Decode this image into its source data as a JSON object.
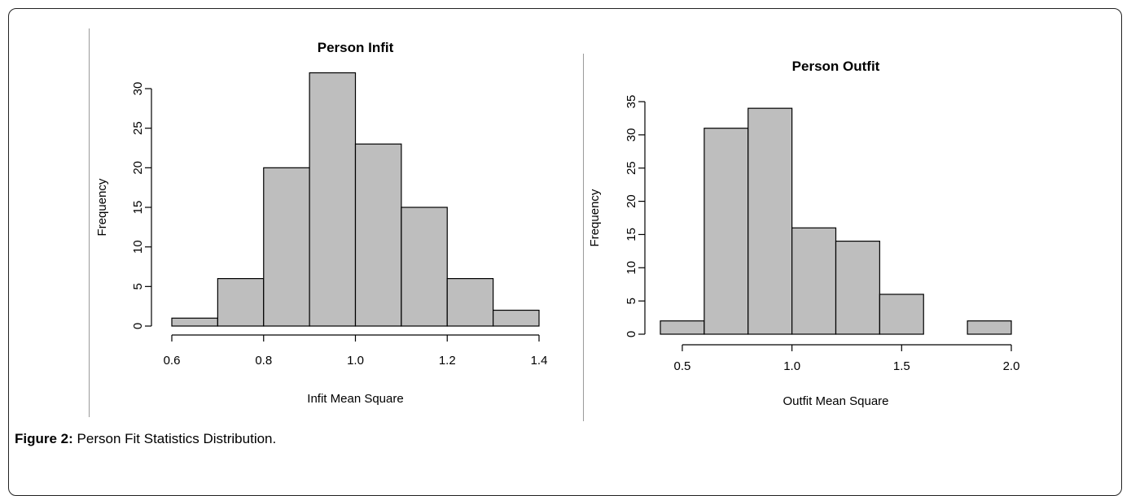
{
  "caption": {
    "label": "Figure 2:",
    "text": "Person Fit Statistics Distribution."
  },
  "chart_data": [
    {
      "type": "bar",
      "title": "Person Infit",
      "xlabel": "Infit Mean Square",
      "ylabel": "Frequency",
      "bins": [
        [
          0.6,
          0.7
        ],
        [
          0.7,
          0.8
        ],
        [
          0.8,
          0.9
        ],
        [
          0.9,
          1.0
        ],
        [
          1.0,
          1.1
        ],
        [
          1.1,
          1.2
        ],
        [
          1.2,
          1.3
        ],
        [
          1.3,
          1.4
        ]
      ],
      "values": [
        1,
        6,
        20,
        32,
        23,
        15,
        6,
        2
      ],
      "xlim": [
        0.6,
        1.4
      ],
      "ylim": [
        0,
        32
      ],
      "xticks": [
        "0.6",
        "0.8",
        "1.0",
        "1.2",
        "1.4"
      ],
      "yticks": [
        "0",
        "5",
        "10",
        "15",
        "20",
        "25",
        "30"
      ],
      "bar_color": "#bebebe",
      "grid": false
    },
    {
      "type": "bar",
      "title": "Person Outfit",
      "xlabel": "Outfit Mean Square",
      "ylabel": "Frequency",
      "bins": [
        [
          0.4,
          0.6
        ],
        [
          0.6,
          0.8
        ],
        [
          0.8,
          1.0
        ],
        [
          1.0,
          1.2
        ],
        [
          1.2,
          1.4
        ],
        [
          1.4,
          1.6
        ],
        [
          1.6,
          1.8
        ],
        [
          1.8,
          2.0
        ]
      ],
      "values": [
        2,
        31,
        34,
        16,
        14,
        6,
        0,
        2
      ],
      "xlim": [
        0.4,
        2.0
      ],
      "ylim": [
        0,
        35
      ],
      "xticks": [
        "0.5",
        "1.0",
        "1.5",
        "2.0"
      ],
      "yticks": [
        "0",
        "5",
        "10",
        "15",
        "20",
        "25",
        "30",
        "35"
      ],
      "bar_color": "#bebebe",
      "grid": false
    }
  ]
}
